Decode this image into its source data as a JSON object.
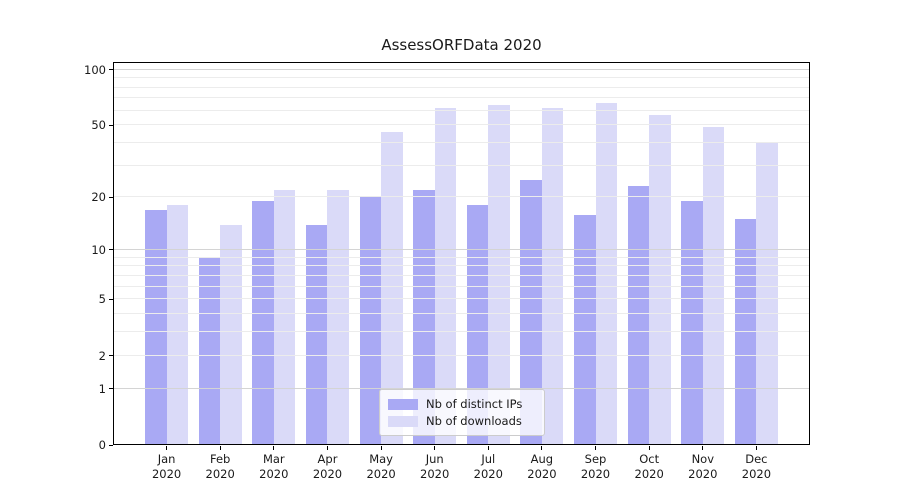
{
  "title": "AssessORFData 2020",
  "chart_data": {
    "type": "bar",
    "title": "AssessORFData 2020",
    "yscale": "symlog",
    "ylim": [
      0,
      100
    ],
    "grid": true,
    "categories": [
      "Jan",
      "Feb",
      "Mar",
      "Apr",
      "May",
      "Jun",
      "Jul",
      "Aug",
      "Sep",
      "Oct",
      "Nov",
      "Dec"
    ],
    "year_label": "2020",
    "series": [
      {
        "name": "Nb of distinct IPs",
        "color": "#a9a9f4",
        "values": [
          17,
          9,
          19,
          14,
          20,
          22,
          18,
          25,
          16,
          23,
          19,
          15
        ]
      },
      {
        "name": "Nb of downloads",
        "color": "#dadaf8",
        "values": [
          18,
          14,
          22,
          22,
          46,
          62,
          64,
          62,
          66,
          57,
          49,
          40
        ]
      }
    ],
    "y_tick_labels": [
      100,
      50,
      20,
      10,
      5,
      2,
      1,
      0
    ],
    "y_major_gridlines": [
      1,
      10,
      100
    ],
    "y_minor_gridlines": [
      2,
      3,
      4,
      5,
      6,
      7,
      8,
      9,
      20,
      30,
      40,
      50,
      60,
      70,
      80,
      90
    ],
    "legend_entries": [
      "Nb of distinct IPs",
      "Nb of downloads"
    ],
    "legend_position": "lower center"
  }
}
